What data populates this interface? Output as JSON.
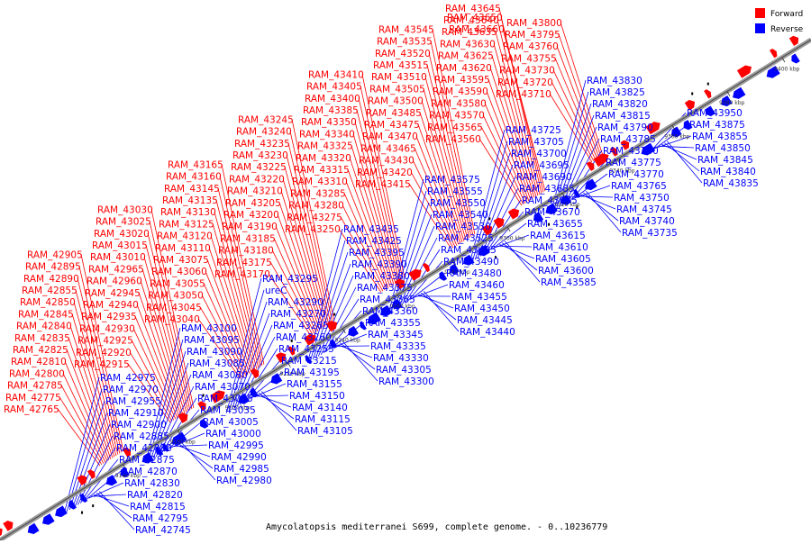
{
  "colors": {
    "forward": "#ff0000",
    "reverse": "#0000ff",
    "axis": "#888888"
  },
  "legend": {
    "forward_label": "Forward",
    "reverse_label": "Reverse"
  },
  "caption": "Amycolatopsis mediterranei S699, complete genome. - 0..10236779",
  "ticks": [
    "9160 kbp",
    "9180 kbp",
    "9200 kbp",
    "9220 kbp",
    "9240 kbp",
    "9260 kbp",
    "9280 kbp",
    "9300 kbp",
    "9320 kbp",
    "9340 kbp",
    "9360 kbp",
    "9380 kbp",
    "9400 kbp"
  ],
  "forward_labels": [
    "RAM_42765",
    "RAM_42775",
    "RAM_42785",
    "RAM_42800",
    "RAM_42810",
    "RAM_42825",
    "RAM_42835",
    "RAM_42840",
    "RAM_42845",
    "RAM_42850",
    "RAM_42855",
    "RAM_42890",
    "RAM_42895",
    "RAM_42905",
    "RAM_42915",
    "RAM_42920",
    "RAM_42925",
    "RAM_42930",
    "RAM_42935",
    "RAM_42940",
    "RAM_42945",
    "RAM_42960",
    "RAM_42965",
    "RAM_43010",
    "RAM_43015",
    "RAM_43020",
    "RAM_43025",
    "RAM_43030",
    "RAM_43040",
    "RAM_43045",
    "RAM_43050",
    "RAM_43055",
    "RAM_43060",
    "RAM_43075",
    "RAM_43110",
    "RAM_43120",
    "RAM_43125",
    "RAM_43130",
    "RAM_43135",
    "RAM_43145",
    "RAM_43160",
    "RAM_43165",
    "RAM_43170",
    "RAM_43175",
    "RAM_43180",
    "RAM_43185",
    "RAM_43190",
    "RAM_43200",
    "RAM_43205",
    "RAM_43210",
    "RAM_43220",
    "RAM_43225",
    "RAM_43230",
    "RAM_43235",
    "RAM_43240",
    "RAM_43245",
    "RAM_43250",
    "RAM_43275",
    "RAM_43280",
    "RAM_43285",
    "RAM_43310",
    "RAM_43315",
    "RAM_43320",
    "RAM_43325",
    "RAM_43340",
    "RAM_43350",
    "RAM_43385",
    "RAM_43400",
    "RAM_43405",
    "RAM_43410",
    "RAM_43415",
    "RAM_43420",
    "RAM_43430",
    "RAM_43465",
    "RAM_43470",
    "RAM_43475",
    "RAM_43485",
    "RAM_43500",
    "RAM_43505",
    "RAM_43510",
    "RAM_43515",
    "RAM_43520",
    "RAM_43535",
    "RAM_43545",
    "RAM_43560",
    "RAM_43565",
    "RAM_43570",
    "RAM_43580",
    "RAM_43590",
    "RAM_43595",
    "RAM_43620",
    "RAM_43625",
    "RAM_43630",
    "RAM_43635",
    "RAM_43640",
    "RAM_43645",
    "RAM_43650",
    "RAM_43660",
    "RAM_43710",
    "RAM_43720",
    "RAM_43730",
    "RAM_43755",
    "RAM_43760",
    "RAM_43795",
    "RAM_43800"
  ],
  "reverse_labels": [
    "RAM_42745",
    "RAM_42795",
    "RAM_42815",
    "RAM_42820",
    "RAM_42830",
    "RAM_42870",
    "RAM_42875",
    "RAM_42880",
    "RAM_42885",
    "RAM_42900",
    "RAM_42910",
    "RAM_42955",
    "RAM_42970",
    "RAM_42975",
    "RAM_42980",
    "RAM_42985",
    "RAM_42990",
    "RAM_42995",
    "RAM_43000",
    "RAM_43005",
    "RAM_43035",
    "RAM_43065",
    "RAM_43070",
    "RAM_43080",
    "RAM_43085",
    "RAM_43090",
    "RAM_43095",
    "RAM_43100",
    "RAM_43105",
    "RAM_43115",
    "RAM_43140",
    "RAM_43150",
    "RAM_43155",
    "RAM_43195",
    "RAM_43215",
    "RAM_43255",
    "RAM_43260",
    "RAM_43265",
    "RAM_43270",
    "RAM_43290",
    "ureC",
    "RAM_43295",
    "RAM_43300",
    "RAM_43305",
    "RAM_43330",
    "RAM_43335",
    "RAM_43345",
    "RAM_43355",
    "RAM_43360",
    "RAM_43365",
    "RAM_43375",
    "RAM_43380",
    "RAM_43390",
    "RAM_43395",
    "RAM_43425",
    "RAM_43435",
    "RAM_43440",
    "RAM_43445",
    "RAM_43450",
    "RAM_43455",
    "RAM_43460",
    "RAM_43480",
    "RAM_43490",
    "RAM_43495",
    "RAM_43525",
    "RAM_43530",
    "RAM_43540",
    "RAM_43550",
    "RAM_43555",
    "RAM_43575",
    "RAM_43585",
    "RAM_43600",
    "RAM_43605",
    "RAM_43610",
    "RAM_43615",
    "RAM_43655",
    "RAM_43670",
    "RAM_43675",
    "RAM_43685",
    "RAM_43690",
    "RAM_43695",
    "RAM_43700",
    "RAM_43705",
    "RAM_43725",
    "RAM_43735",
    "RAM_43740",
    "RAM_43745",
    "RAM_43750",
    "RAM_43765",
    "RAM_43770",
    "RAM_43775",
    "RAM_43780",
    "RAM_43785",
    "RAM_43790",
    "RAM_43815",
    "RAM_43820",
    "RAM_43825",
    "RAM_43830",
    "RAM_43835",
    "RAM_43840",
    "RAM_43845",
    "RAM_43850",
    "RAM_43855",
    "RAM_43875",
    "RAM_43950"
  ]
}
